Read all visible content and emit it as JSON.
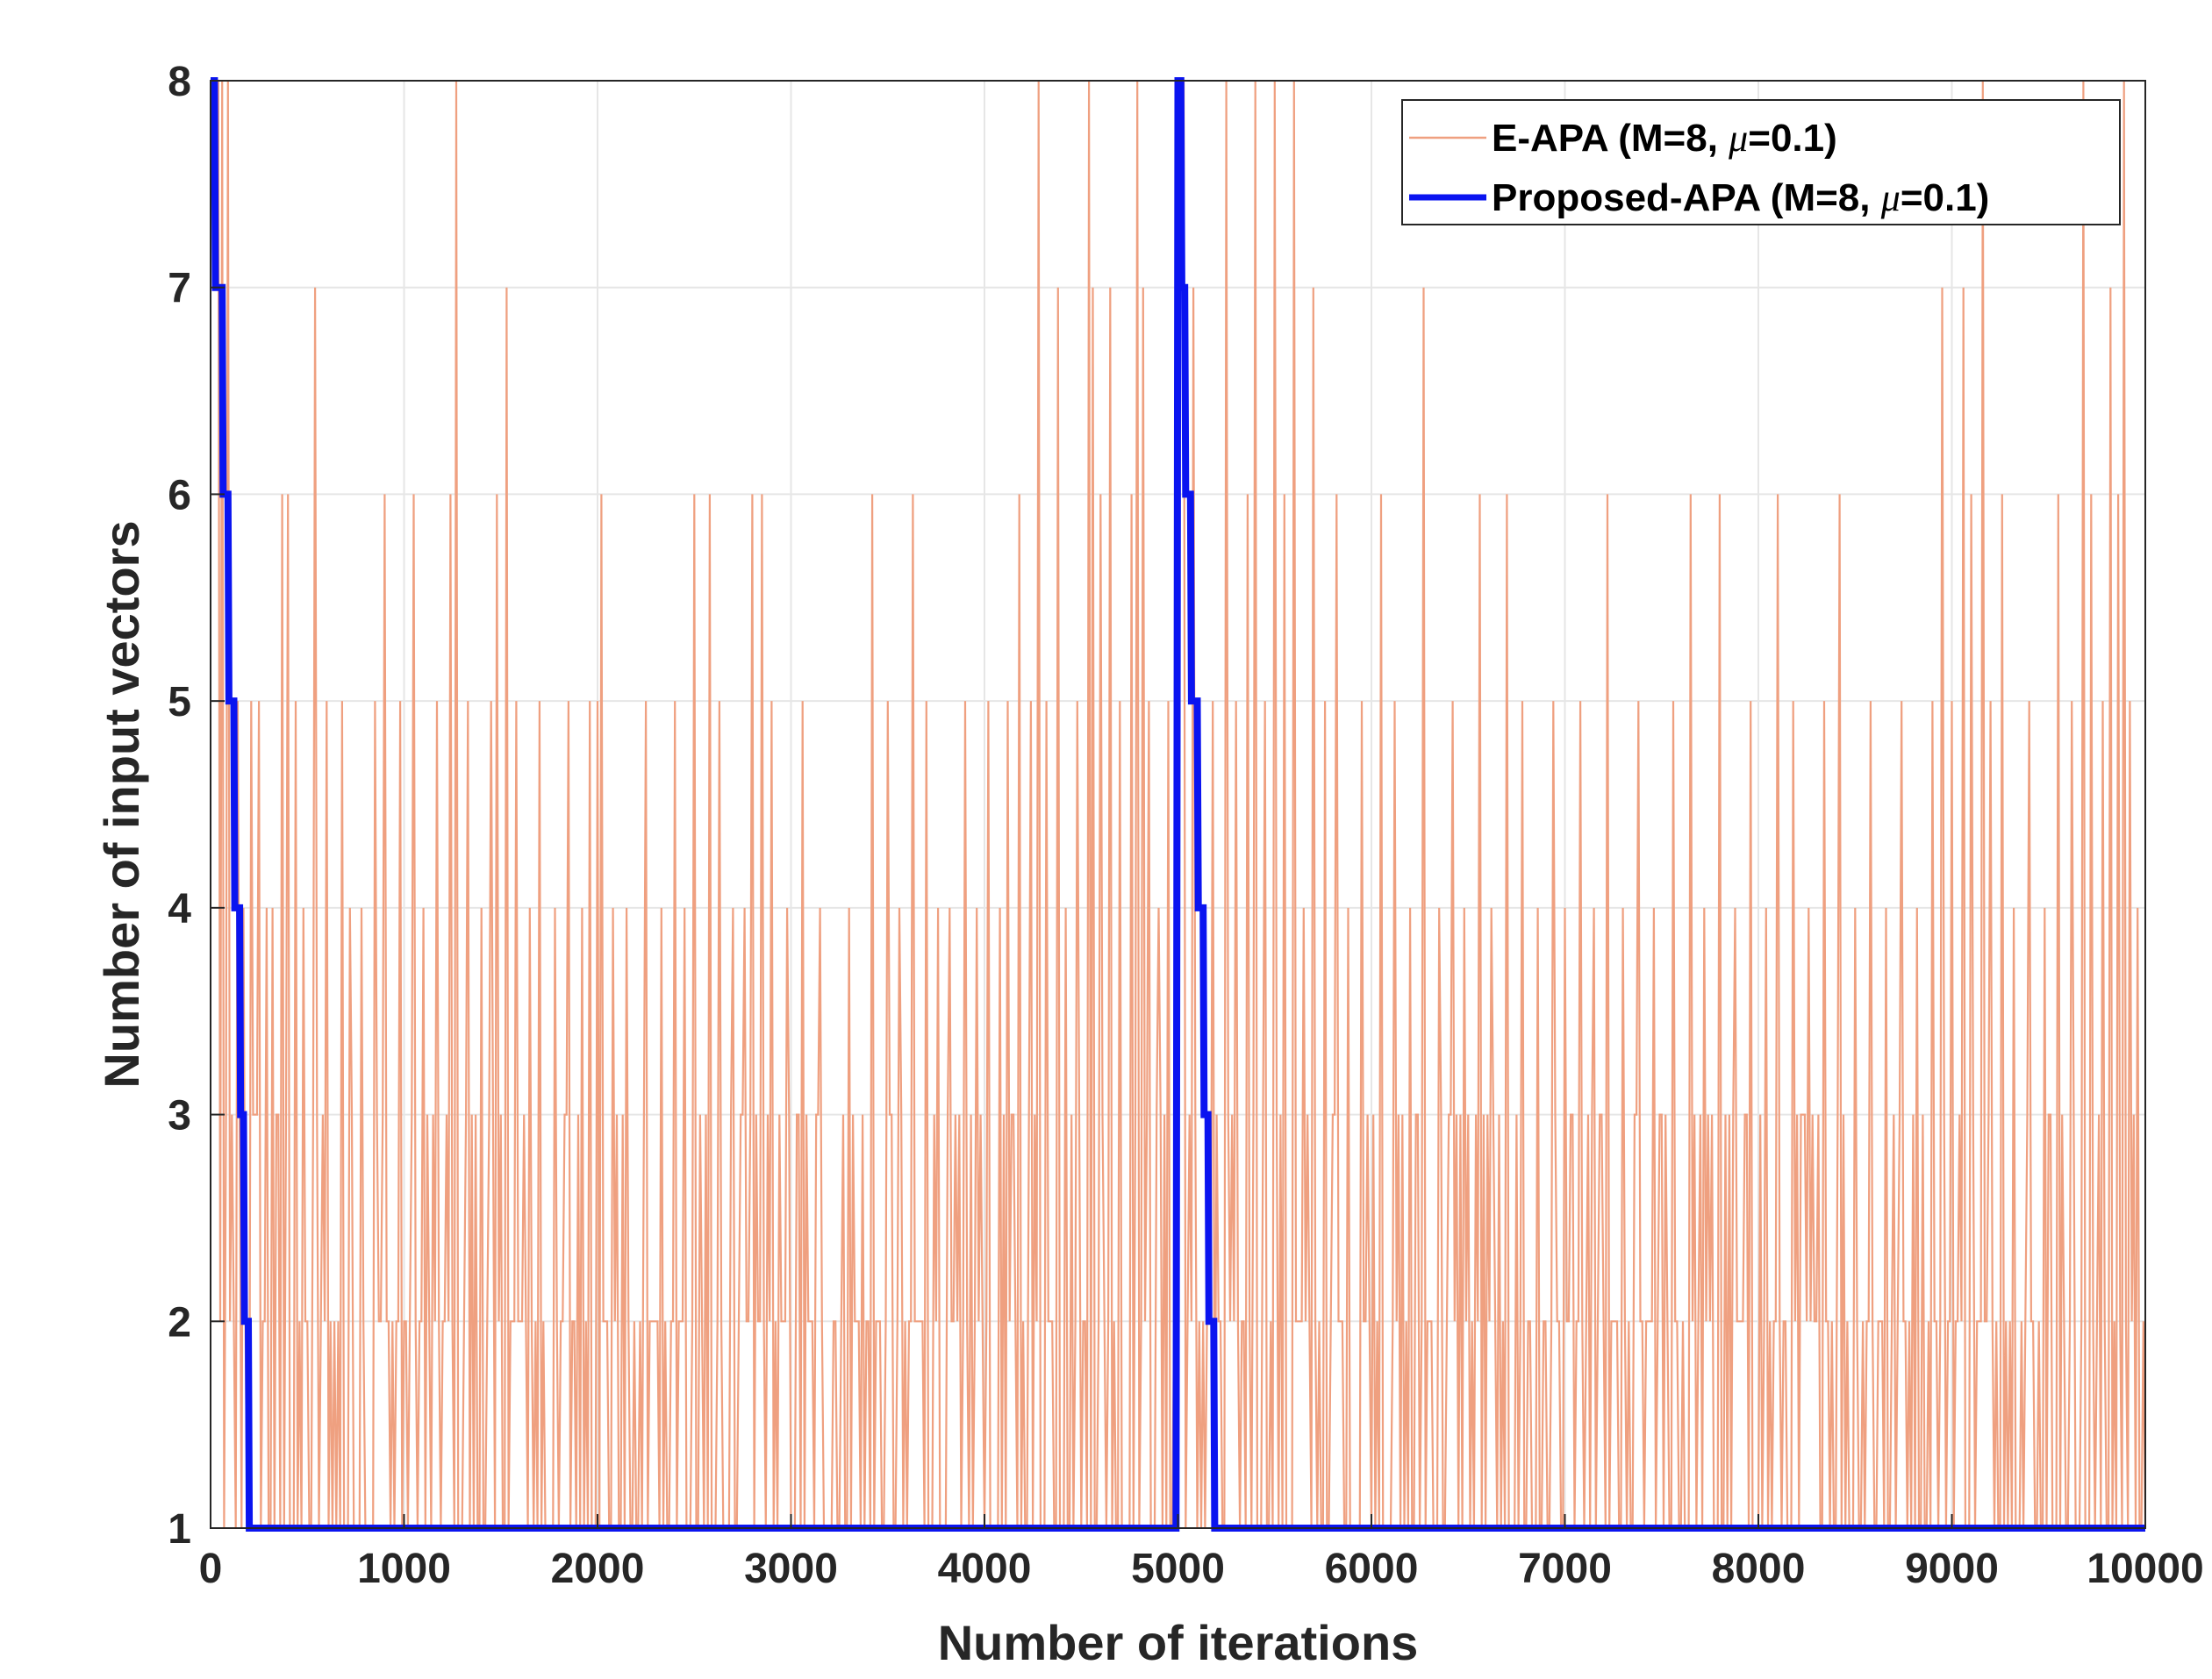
{
  "chart_data": {
    "type": "line",
    "title": "",
    "xlabel": "Number of iterations",
    "ylabel": "Number of input vectors",
    "xlim": [
      0,
      10000
    ],
    "ylim": [
      1,
      8
    ],
    "xticks": [
      0,
      1000,
      2000,
      3000,
      4000,
      5000,
      6000,
      7000,
      8000,
      9000,
      10000
    ],
    "yticks": [
      1,
      2,
      3,
      4,
      5,
      6,
      7,
      8
    ],
    "xtick_labels": [
      "0",
      "1000",
      "2000",
      "3000",
      "4000",
      "5000",
      "6000",
      "7000",
      "8000",
      "9000",
      "10000"
    ],
    "ytick_labels": [
      "1",
      "2",
      "3",
      "4",
      "5",
      "6",
      "7",
      "8"
    ],
    "grid": true,
    "legend_position": "top-right",
    "series": [
      {
        "name": "E-APA (M=8, μ=0.1)",
        "legend_prefix": "E-APA (M=8, ",
        "legend_symbol": "μ",
        "legend_suffix": "=0.1)",
        "color": "#EFA080",
        "style": "thin-noisy",
        "description_values": "random integer selection per iteration, mostly 1-3, occasional spikes to 4-8",
        "segments": [
          {
            "start": 0,
            "end": 5000,
            "values_note": "mostly 1-2, frequent 3, occasional 4-8"
          },
          {
            "start": 5000,
            "end": 10000,
            "values_note": "mostly 1-2, frequent 3, occasional 4-8"
          }
        ]
      },
      {
        "name": "Proposed-APA (M=8, μ=0.1)",
        "legend_prefix": "Proposed-APA (M=8, ",
        "legend_symbol": "μ",
        "legend_suffix": "=0.1)",
        "color": "#0A14F0",
        "style": "thick",
        "x": [
          0,
          20,
          25,
          60,
          65,
          90,
          95,
          120,
          125,
          150,
          155,
          170,
          175,
          195,
          200,
          4990,
          5000,
          5015,
          5020,
          5035,
          5040,
          5065,
          5070,
          5100,
          5105,
          5130,
          5135,
          5155,
          5160,
          5185,
          5190,
          10000
        ],
        "y": [
          8,
          8,
          7,
          7,
          6,
          6,
          5,
          5,
          4,
          4,
          3,
          3,
          2,
          2,
          1,
          1,
          8,
          8,
          7,
          7,
          6,
          6,
          5,
          5,
          4,
          4,
          3,
          3,
          2,
          2,
          1,
          1
        ]
      }
    ],
    "eapa_dense_model": {
      "base_pattern": [
        1,
        2,
        1,
        2,
        1,
        3,
        1,
        2,
        2,
        1,
        1,
        3,
        2,
        1,
        2,
        1,
        1,
        2,
        3,
        1
      ],
      "spike_points": [
        {
          "x": 60,
          "y": 8
        },
        {
          "x": 90,
          "y": 8
        },
        {
          "x": 140,
          "y": 5
        },
        {
          "x": 170,
          "y": 4
        },
        {
          "x": 210,
          "y": 5
        },
        {
          "x": 250,
          "y": 5
        },
        {
          "x": 290,
          "y": 4
        },
        {
          "x": 320,
          "y": 4
        },
        {
          "x": 370,
          "y": 6
        },
        {
          "x": 400,
          "y": 6
        },
        {
          "x": 440,
          "y": 5
        },
        {
          "x": 480,
          "y": 4
        },
        {
          "x": 540,
          "y": 7
        },
        {
          "x": 600,
          "y": 5
        },
        {
          "x": 680,
          "y": 5
        },
        {
          "x": 720,
          "y": 4
        },
        {
          "x": 780,
          "y": 4
        },
        {
          "x": 850,
          "y": 5
        },
        {
          "x": 900,
          "y": 6
        },
        {
          "x": 980,
          "y": 5
        },
        {
          "x": 1050,
          "y": 6
        },
        {
          "x": 1100,
          "y": 4
        },
        {
          "x": 1170,
          "y": 5
        },
        {
          "x": 1240,
          "y": 6
        },
        {
          "x": 1270,
          "y": 8
        },
        {
          "x": 1330,
          "y": 5
        },
        {
          "x": 1400,
          "y": 4
        },
        {
          "x": 1450,
          "y": 5
        },
        {
          "x": 1480,
          "y": 6
        },
        {
          "x": 1530,
          "y": 7
        },
        {
          "x": 1580,
          "y": 5
        },
        {
          "x": 1650,
          "y": 4
        },
        {
          "x": 1700,
          "y": 5
        },
        {
          "x": 1780,
          "y": 4
        },
        {
          "x": 1850,
          "y": 5
        },
        {
          "x": 1920,
          "y": 4
        },
        {
          "x": 1960,
          "y": 5
        },
        {
          "x": 2000,
          "y": 5
        },
        {
          "x": 2020,
          "y": 6
        },
        {
          "x": 2080,
          "y": 4
        },
        {
          "x": 2150,
          "y": 4
        },
        {
          "x": 2250,
          "y": 5
        },
        {
          "x": 2330,
          "y": 4
        },
        {
          "x": 2400,
          "y": 5
        },
        {
          "x": 2450,
          "y": 4
        },
        {
          "x": 2500,
          "y": 6
        },
        {
          "x": 2580,
          "y": 6
        },
        {
          "x": 2630,
          "y": 5
        },
        {
          "x": 2700,
          "y": 4
        },
        {
          "x": 2760,
          "y": 4
        },
        {
          "x": 2800,
          "y": 6
        },
        {
          "x": 2850,
          "y": 6
        },
        {
          "x": 2900,
          "y": 5
        },
        {
          "x": 2980,
          "y": 4
        },
        {
          "x": 3060,
          "y": 5
        },
        {
          "x": 3150,
          "y": 4
        },
        {
          "x": 3300,
          "y": 4
        },
        {
          "x": 3420,
          "y": 6
        },
        {
          "x": 3500,
          "y": 5
        },
        {
          "x": 3560,
          "y": 4
        },
        {
          "x": 3630,
          "y": 6
        },
        {
          "x": 3700,
          "y": 5
        },
        {
          "x": 3760,
          "y": 4
        },
        {
          "x": 3820,
          "y": 4
        },
        {
          "x": 3900,
          "y": 5
        },
        {
          "x": 3960,
          "y": 4
        },
        {
          "x": 4020,
          "y": 5
        },
        {
          "x": 4080,
          "y": 4
        },
        {
          "x": 4120,
          "y": 5
        },
        {
          "x": 4180,
          "y": 6
        },
        {
          "x": 4240,
          "y": 5
        },
        {
          "x": 4280,
          "y": 8
        },
        {
          "x": 4320,
          "y": 5
        },
        {
          "x": 4380,
          "y": 7
        },
        {
          "x": 4420,
          "y": 4
        },
        {
          "x": 4480,
          "y": 5
        },
        {
          "x": 4540,
          "y": 8
        },
        {
          "x": 4560,
          "y": 7
        },
        {
          "x": 4600,
          "y": 6
        },
        {
          "x": 4650,
          "y": 7
        },
        {
          "x": 4700,
          "y": 5
        },
        {
          "x": 4760,
          "y": 6
        },
        {
          "x": 4790,
          "y": 8
        },
        {
          "x": 4820,
          "y": 7
        },
        {
          "x": 4850,
          "y": 5
        },
        {
          "x": 4900,
          "y": 4
        },
        {
          "x": 4950,
          "y": 5
        },
        {
          "x": 5080,
          "y": 7
        },
        {
          "x": 5180,
          "y": 5
        },
        {
          "x": 5250,
          "y": 8
        },
        {
          "x": 5300,
          "y": 5
        },
        {
          "x": 5360,
          "y": 6
        },
        {
          "x": 5400,
          "y": 8
        },
        {
          "x": 5450,
          "y": 5
        },
        {
          "x": 5500,
          "y": 8
        },
        {
          "x": 5550,
          "y": 6
        },
        {
          "x": 5600,
          "y": 8
        },
        {
          "x": 5650,
          "y": 4
        },
        {
          "x": 5700,
          "y": 7
        },
        {
          "x": 5760,
          "y": 5
        },
        {
          "x": 5820,
          "y": 6
        },
        {
          "x": 5880,
          "y": 4
        },
        {
          "x": 5950,
          "y": 5
        },
        {
          "x": 6050,
          "y": 6
        },
        {
          "x": 6120,
          "y": 5
        },
        {
          "x": 6200,
          "y": 4
        },
        {
          "x": 6270,
          "y": 7
        },
        {
          "x": 6350,
          "y": 4
        },
        {
          "x": 6420,
          "y": 5
        },
        {
          "x": 6480,
          "y": 4
        },
        {
          "x": 6560,
          "y": 6
        },
        {
          "x": 6620,
          "y": 4
        },
        {
          "x": 6700,
          "y": 6
        },
        {
          "x": 6780,
          "y": 5
        },
        {
          "x": 6860,
          "y": 4
        },
        {
          "x": 6940,
          "y": 5
        },
        {
          "x": 7000,
          "y": 4
        },
        {
          "x": 7080,
          "y": 5
        },
        {
          "x": 7150,
          "y": 4
        },
        {
          "x": 7220,
          "y": 6
        },
        {
          "x": 7300,
          "y": 4
        },
        {
          "x": 7380,
          "y": 5
        },
        {
          "x": 7460,
          "y": 4
        },
        {
          "x": 7560,
          "y": 5
        },
        {
          "x": 7650,
          "y": 6
        },
        {
          "x": 7720,
          "y": 4
        },
        {
          "x": 7800,
          "y": 6
        },
        {
          "x": 7880,
          "y": 4
        },
        {
          "x": 7960,
          "y": 5
        },
        {
          "x": 8040,
          "y": 4
        },
        {
          "x": 8100,
          "y": 6
        },
        {
          "x": 8180,
          "y": 5
        },
        {
          "x": 8260,
          "y": 4
        },
        {
          "x": 8340,
          "y": 5
        },
        {
          "x": 8420,
          "y": 6
        },
        {
          "x": 8500,
          "y": 4
        },
        {
          "x": 8580,
          "y": 5
        },
        {
          "x": 8660,
          "y": 4
        },
        {
          "x": 8740,
          "y": 5
        },
        {
          "x": 8820,
          "y": 4
        },
        {
          "x": 8900,
          "y": 5
        },
        {
          "x": 8950,
          "y": 7
        },
        {
          "x": 9000,
          "y": 5
        },
        {
          "x": 9060,
          "y": 7
        },
        {
          "x": 9100,
          "y": 6
        },
        {
          "x": 9160,
          "y": 8
        },
        {
          "x": 9200,
          "y": 5
        },
        {
          "x": 9260,
          "y": 6
        },
        {
          "x": 9320,
          "y": 4
        },
        {
          "x": 9400,
          "y": 5
        },
        {
          "x": 9480,
          "y": 4
        },
        {
          "x": 9550,
          "y": 6
        },
        {
          "x": 9620,
          "y": 5
        },
        {
          "x": 9680,
          "y": 8
        },
        {
          "x": 9720,
          "y": 6
        },
        {
          "x": 9780,
          "y": 5
        },
        {
          "x": 9820,
          "y": 7
        },
        {
          "x": 9860,
          "y": 6
        },
        {
          "x": 9890,
          "y": 8
        },
        {
          "x": 9920,
          "y": 5
        },
        {
          "x": 9960,
          "y": 4
        }
      ]
    }
  }
}
